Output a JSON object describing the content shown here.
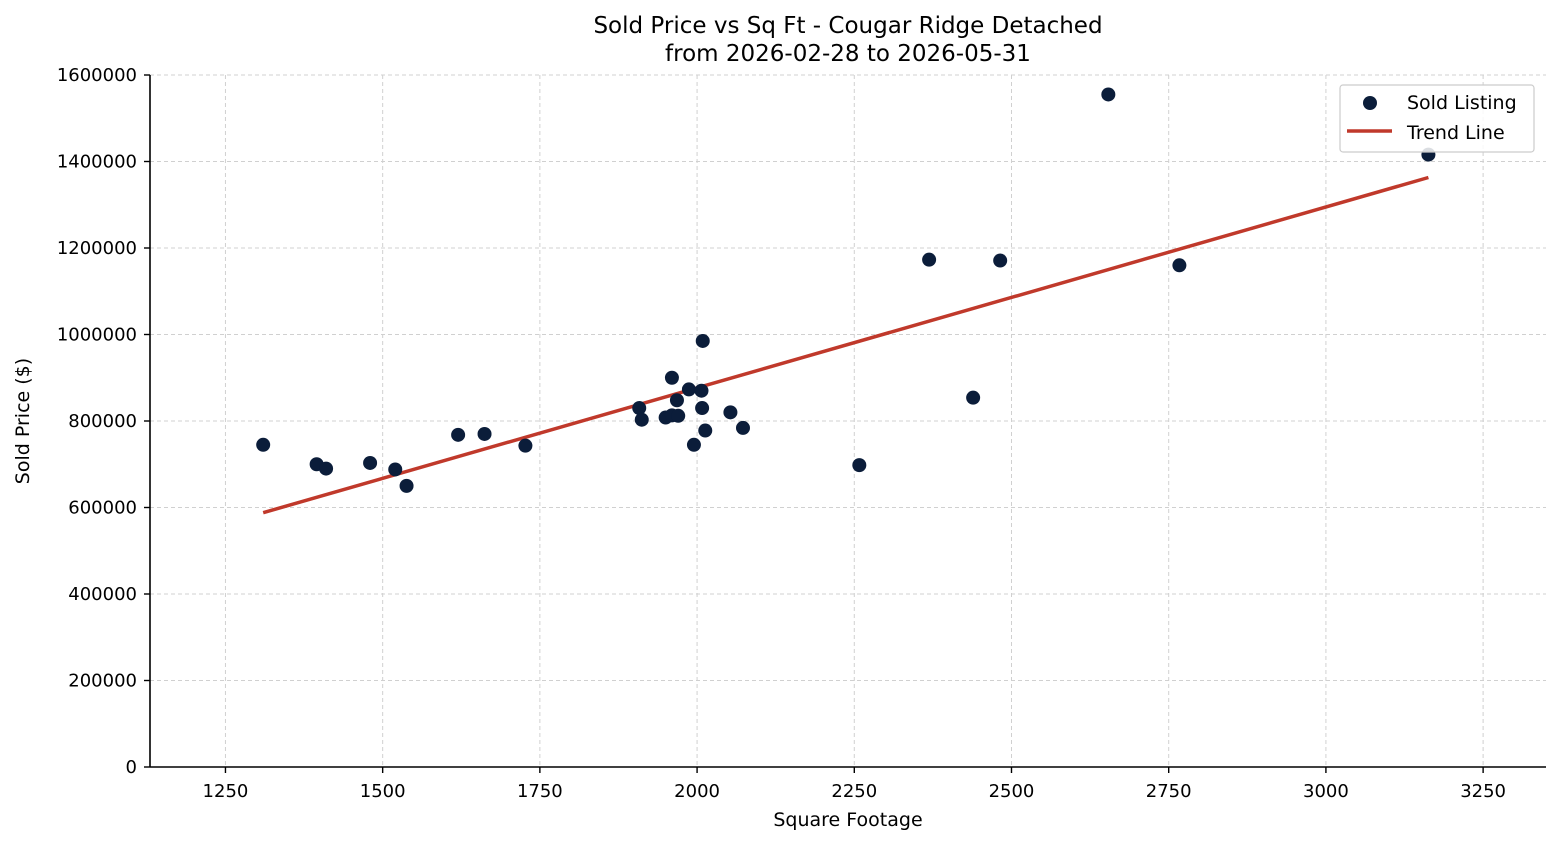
{
  "chart_data": {
    "type": "scatter",
    "title": "Sold Price vs Sq Ft - Cougar Ridge Detached",
    "subtitle": "from 2026-02-28 to 2026-05-31",
    "xlabel": "Square Footage",
    "ylabel": "Sold Price ($)",
    "xlim": [
      1130,
      3350
    ],
    "ylim": [
      0,
      1600000
    ],
    "x_ticks": [
      1250,
      1500,
      1750,
      2000,
      2250,
      2500,
      2750,
      3000,
      3250
    ],
    "y_ticks": [
      0,
      200000,
      400000,
      600000,
      800000,
      1000000,
      1200000,
      1400000,
      1600000
    ],
    "x_tick_labels": [
      "1250",
      "1500",
      "1750",
      "2000",
      "2250",
      "2500",
      "2750",
      "3000",
      "3250"
    ],
    "y_tick_labels": [
      "0",
      "200000",
      "400000",
      "600000",
      "800000",
      "1000000",
      "1200000",
      "1400000",
      "1600000"
    ],
    "grid": true,
    "legend_position": "top-right",
    "colors": {
      "points": "#0b1d3a",
      "trend": "#c0392b"
    },
    "series": [
      {
        "name": "Sold Listing",
        "kind": "scatter",
        "points": [
          {
            "x": 1310,
            "y": 745000
          },
          {
            "x": 1395,
            "y": 700000
          },
          {
            "x": 1410,
            "y": 690000
          },
          {
            "x": 1480,
            "y": 703000
          },
          {
            "x": 1520,
            "y": 688000
          },
          {
            "x": 1538,
            "y": 650000
          },
          {
            "x": 1620,
            "y": 768000
          },
          {
            "x": 1662,
            "y": 770000
          },
          {
            "x": 1727,
            "y": 743000
          },
          {
            "x": 1908,
            "y": 830000
          },
          {
            "x": 1912,
            "y": 803000
          },
          {
            "x": 1950,
            "y": 808000
          },
          {
            "x": 1960,
            "y": 813000
          },
          {
            "x": 1960,
            "y": 900000
          },
          {
            "x": 1968,
            "y": 848000
          },
          {
            "x": 1970,
            "y": 812000
          },
          {
            "x": 1987,
            "y": 873000
          },
          {
            "x": 1995,
            "y": 745000
          },
          {
            "x": 2007,
            "y": 870000
          },
          {
            "x": 2008,
            "y": 830000
          },
          {
            "x": 2009,
            "y": 985000
          },
          {
            "x": 2013,
            "y": 778000
          },
          {
            "x": 2053,
            "y": 820000
          },
          {
            "x": 2073,
            "y": 784000
          },
          {
            "x": 2258,
            "y": 698000
          },
          {
            "x": 2369,
            "y": 1173000
          },
          {
            "x": 2439,
            "y": 854000
          },
          {
            "x": 2482,
            "y": 1171000
          },
          {
            "x": 2654,
            "y": 1555000
          },
          {
            "x": 2767,
            "y": 1160000
          },
          {
            "x": 3163,
            "y": 1416000
          }
        ]
      },
      {
        "name": "Trend Line",
        "kind": "line",
        "points": [
          {
            "x": 1310,
            "y": 588000
          },
          {
            "x": 3163,
            "y": 1363000
          }
        ]
      }
    ]
  }
}
